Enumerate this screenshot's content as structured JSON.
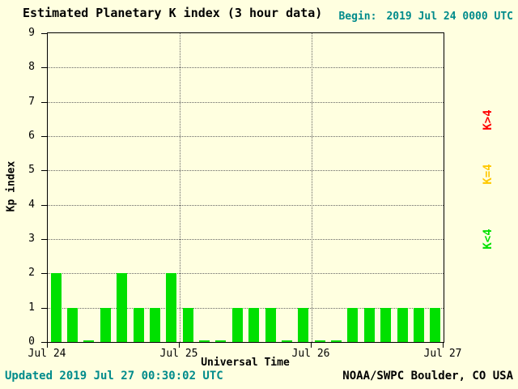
{
  "chart_data": {
    "type": "bar",
    "title": "Estimated Planetary K index (3 hour data)",
    "begin": {
      "label": "Begin:",
      "value": "2019 Jul 24 0000 UTC"
    },
    "xlabel": "Universal Time",
    "ylabel": "Kp index",
    "ylim": [
      0,
      9
    ],
    "yticks": [
      0,
      1,
      2,
      3,
      4,
      5,
      6,
      7,
      8,
      9
    ],
    "xticks": [
      "Jul 24",
      "Jul 25",
      "Jul 26",
      "Jul 27"
    ],
    "values": [
      2,
      1,
      0,
      1,
      2,
      1,
      1,
      2,
      1,
      0,
      0,
      1,
      1,
      1,
      0,
      1,
      0,
      0,
      1,
      1,
      1,
      1,
      1,
      1
    ],
    "thresholds": {
      "mid": 4
    },
    "colors": {
      "low": "#00e000",
      "mid": "#ffc800",
      "high": "#ff0000"
    },
    "legend": [
      {
        "label": "K>4",
        "color": "#ff0000"
      },
      {
        "label": "K=4",
        "color": "#ffc800"
      },
      {
        "label": "K<4",
        "color": "#00e000"
      }
    ],
    "grid": true,
    "legend_position": "right"
  },
  "footer": {
    "updated": "Updated 2019 Jul 27 00:30:02 UTC",
    "credit": "NOAA/SWPC Boulder, CO USA"
  },
  "colors": {
    "background": "#ffffe0",
    "teal_text": "#008b8b",
    "axis": "#000000"
  }
}
